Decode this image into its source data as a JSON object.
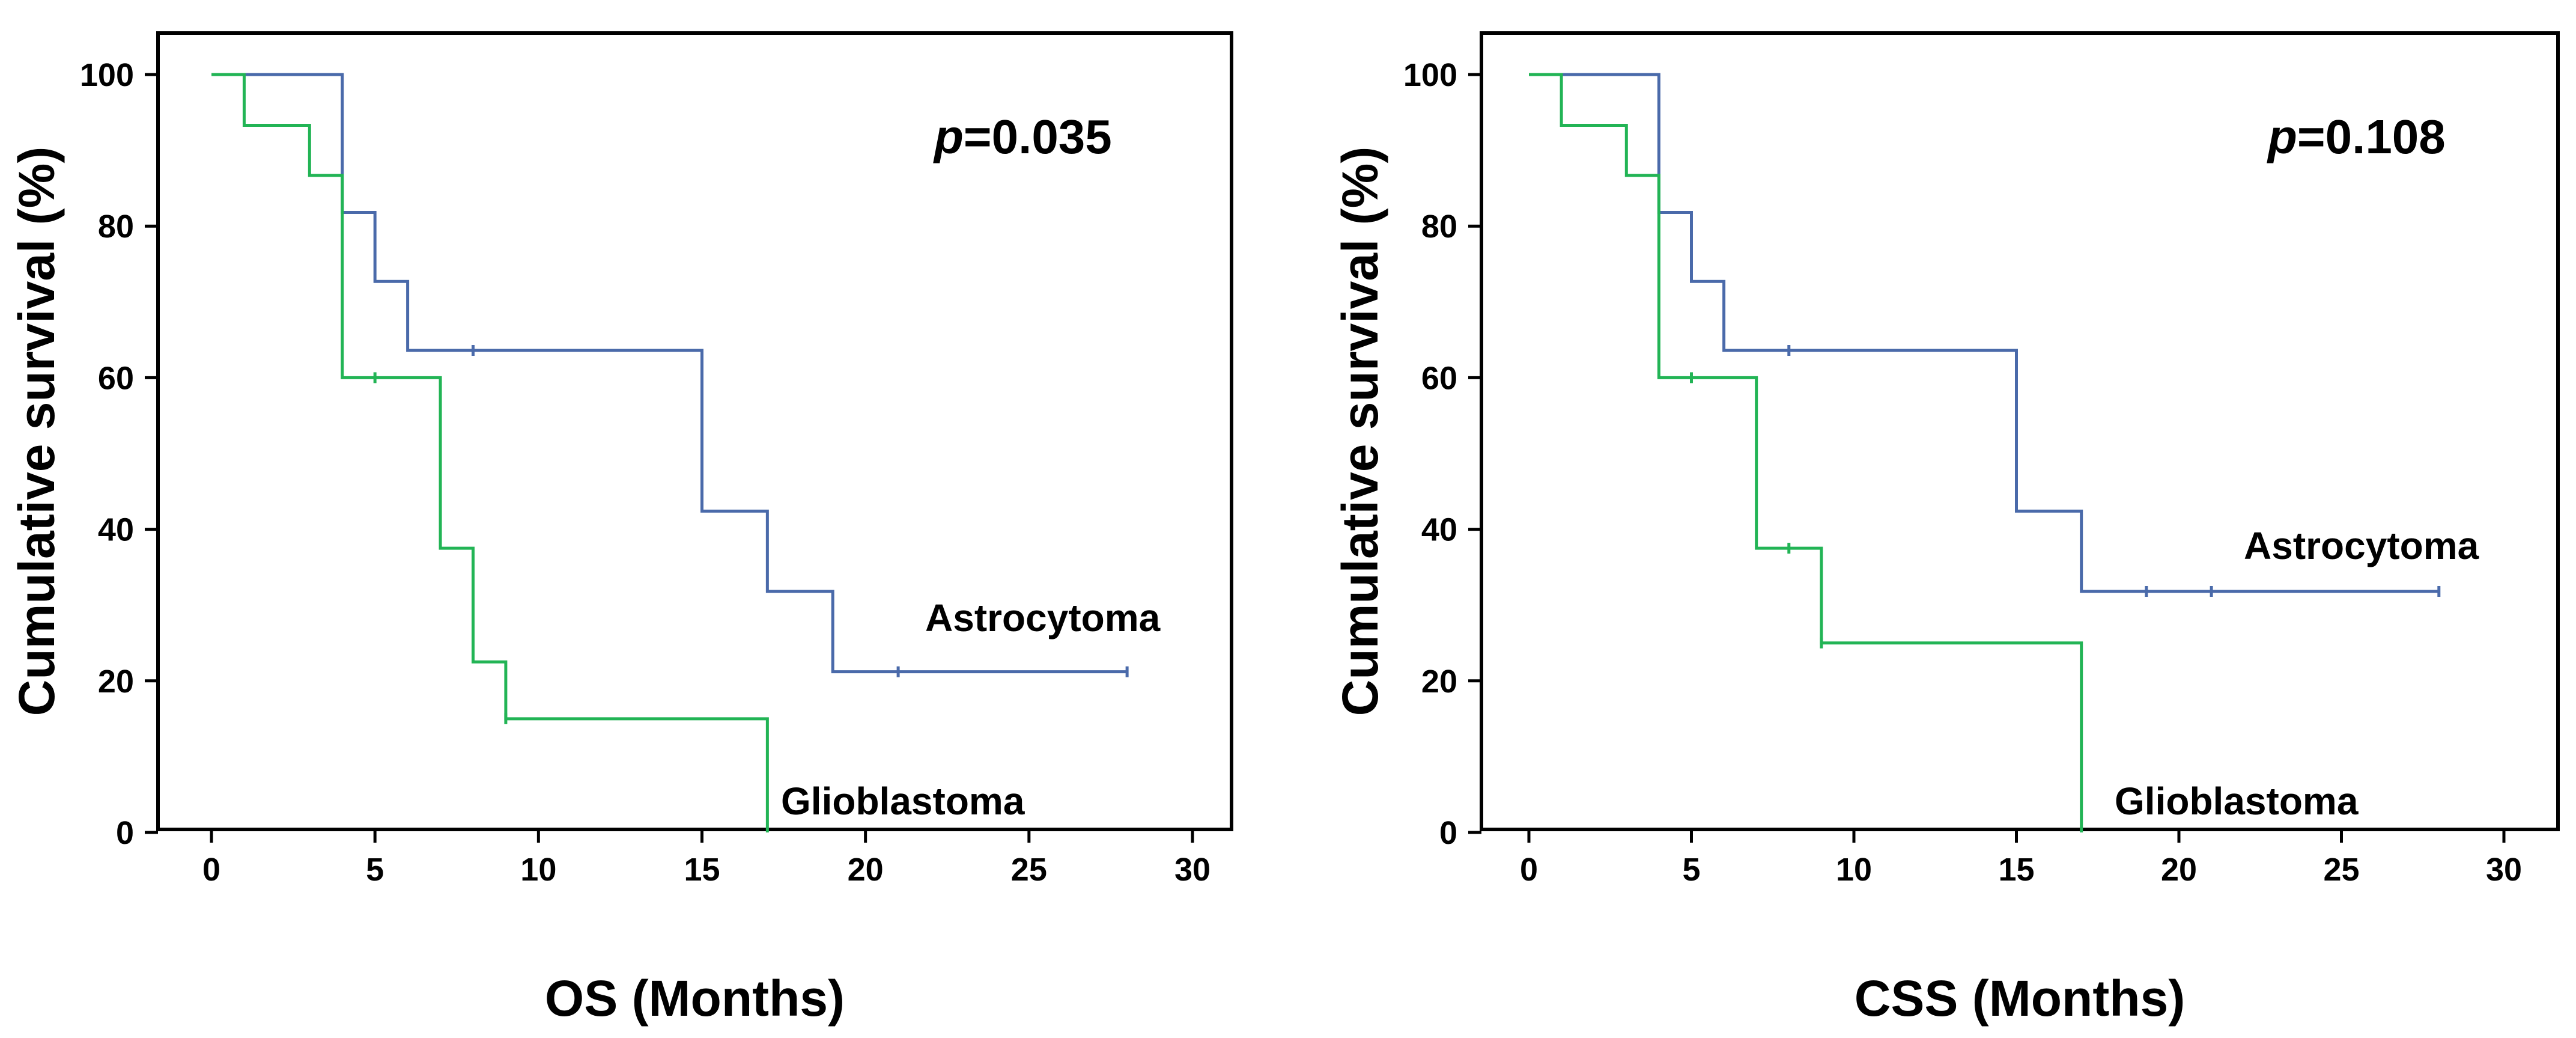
{
  "chart_data": [
    {
      "type": "line",
      "subtype": "kaplan-meier-step",
      "xlabel": "OS (Months)",
      "ylabel": "Cumulative survival (%)",
      "xlim": [
        0,
        30
      ],
      "ylim": [
        0,
        100
      ],
      "xticks": [
        0,
        5,
        10,
        15,
        20,
        25,
        30
      ],
      "yticks": [
        0,
        20,
        40,
        60,
        80,
        100
      ],
      "annotation": {
        "italic": "p",
        "text": "=0.035"
      },
      "series": [
        {
          "name": "Astrocytoma",
          "color": "#4a6aaa",
          "steps": [
            [
              0,
              100
            ],
            [
              4,
              81.8
            ],
            [
              5,
              72.7
            ],
            [
              6,
              63.6
            ],
            [
              15,
              42.4
            ],
            [
              17,
              31.8
            ],
            [
              19,
              21.2
            ]
          ],
          "end": 28,
          "censored": [
            [
              8,
              63.6
            ],
            [
              21,
              21.2
            ],
            [
              28,
              21.2
            ]
          ]
        },
        {
          "name": "Glioblastoma",
          "color": "#22b455",
          "steps": [
            [
              0,
              100
            ],
            [
              1,
              93.3
            ],
            [
              3,
              86.7
            ],
            [
              4,
              60
            ],
            [
              7,
              37.5
            ],
            [
              8,
              22.5
            ],
            [
              9,
              15
            ],
            [
              17,
              0
            ]
          ],
          "end": 17,
          "censored": [
            [
              5,
              60
            ],
            [
              9,
              15
            ]
          ]
        }
      ]
    },
    {
      "type": "line",
      "subtype": "kaplan-meier-step",
      "xlabel": "CSS (Months)",
      "ylabel": "Cumulative survival (%)",
      "xlim": [
        0,
        30
      ],
      "ylim": [
        0,
        100
      ],
      "xticks": [
        0,
        5,
        10,
        15,
        20,
        25,
        30
      ],
      "yticks": [
        0,
        20,
        40,
        60,
        80,
        100
      ],
      "annotation": {
        "italic": "p",
        "text": "=0.108"
      },
      "series": [
        {
          "name": "Astrocytoma",
          "color": "#4a6aaa",
          "steps": [
            [
              0,
              100
            ],
            [
              4,
              81.8
            ],
            [
              5,
              72.7
            ],
            [
              6,
              63.6
            ],
            [
              15,
              42.4
            ],
            [
              17,
              31.8
            ]
          ],
          "end": 28,
          "censored": [
            [
              8,
              63.6
            ],
            [
              19,
              31.8
            ],
            [
              21,
              31.8
            ],
            [
              28,
              31.8
            ]
          ]
        },
        {
          "name": "Glioblastoma",
          "color": "#22b455",
          "steps": [
            [
              0,
              100
            ],
            [
              1,
              93.3
            ],
            [
              3,
              86.7
            ],
            [
              4,
              60
            ],
            [
              7,
              37.5
            ],
            [
              9,
              25
            ],
            [
              17,
              0
            ]
          ],
          "end": 17,
          "censored": [
            [
              5,
              60
            ],
            [
              8,
              37.5
            ],
            [
              9,
              25
            ]
          ]
        }
      ]
    }
  ]
}
